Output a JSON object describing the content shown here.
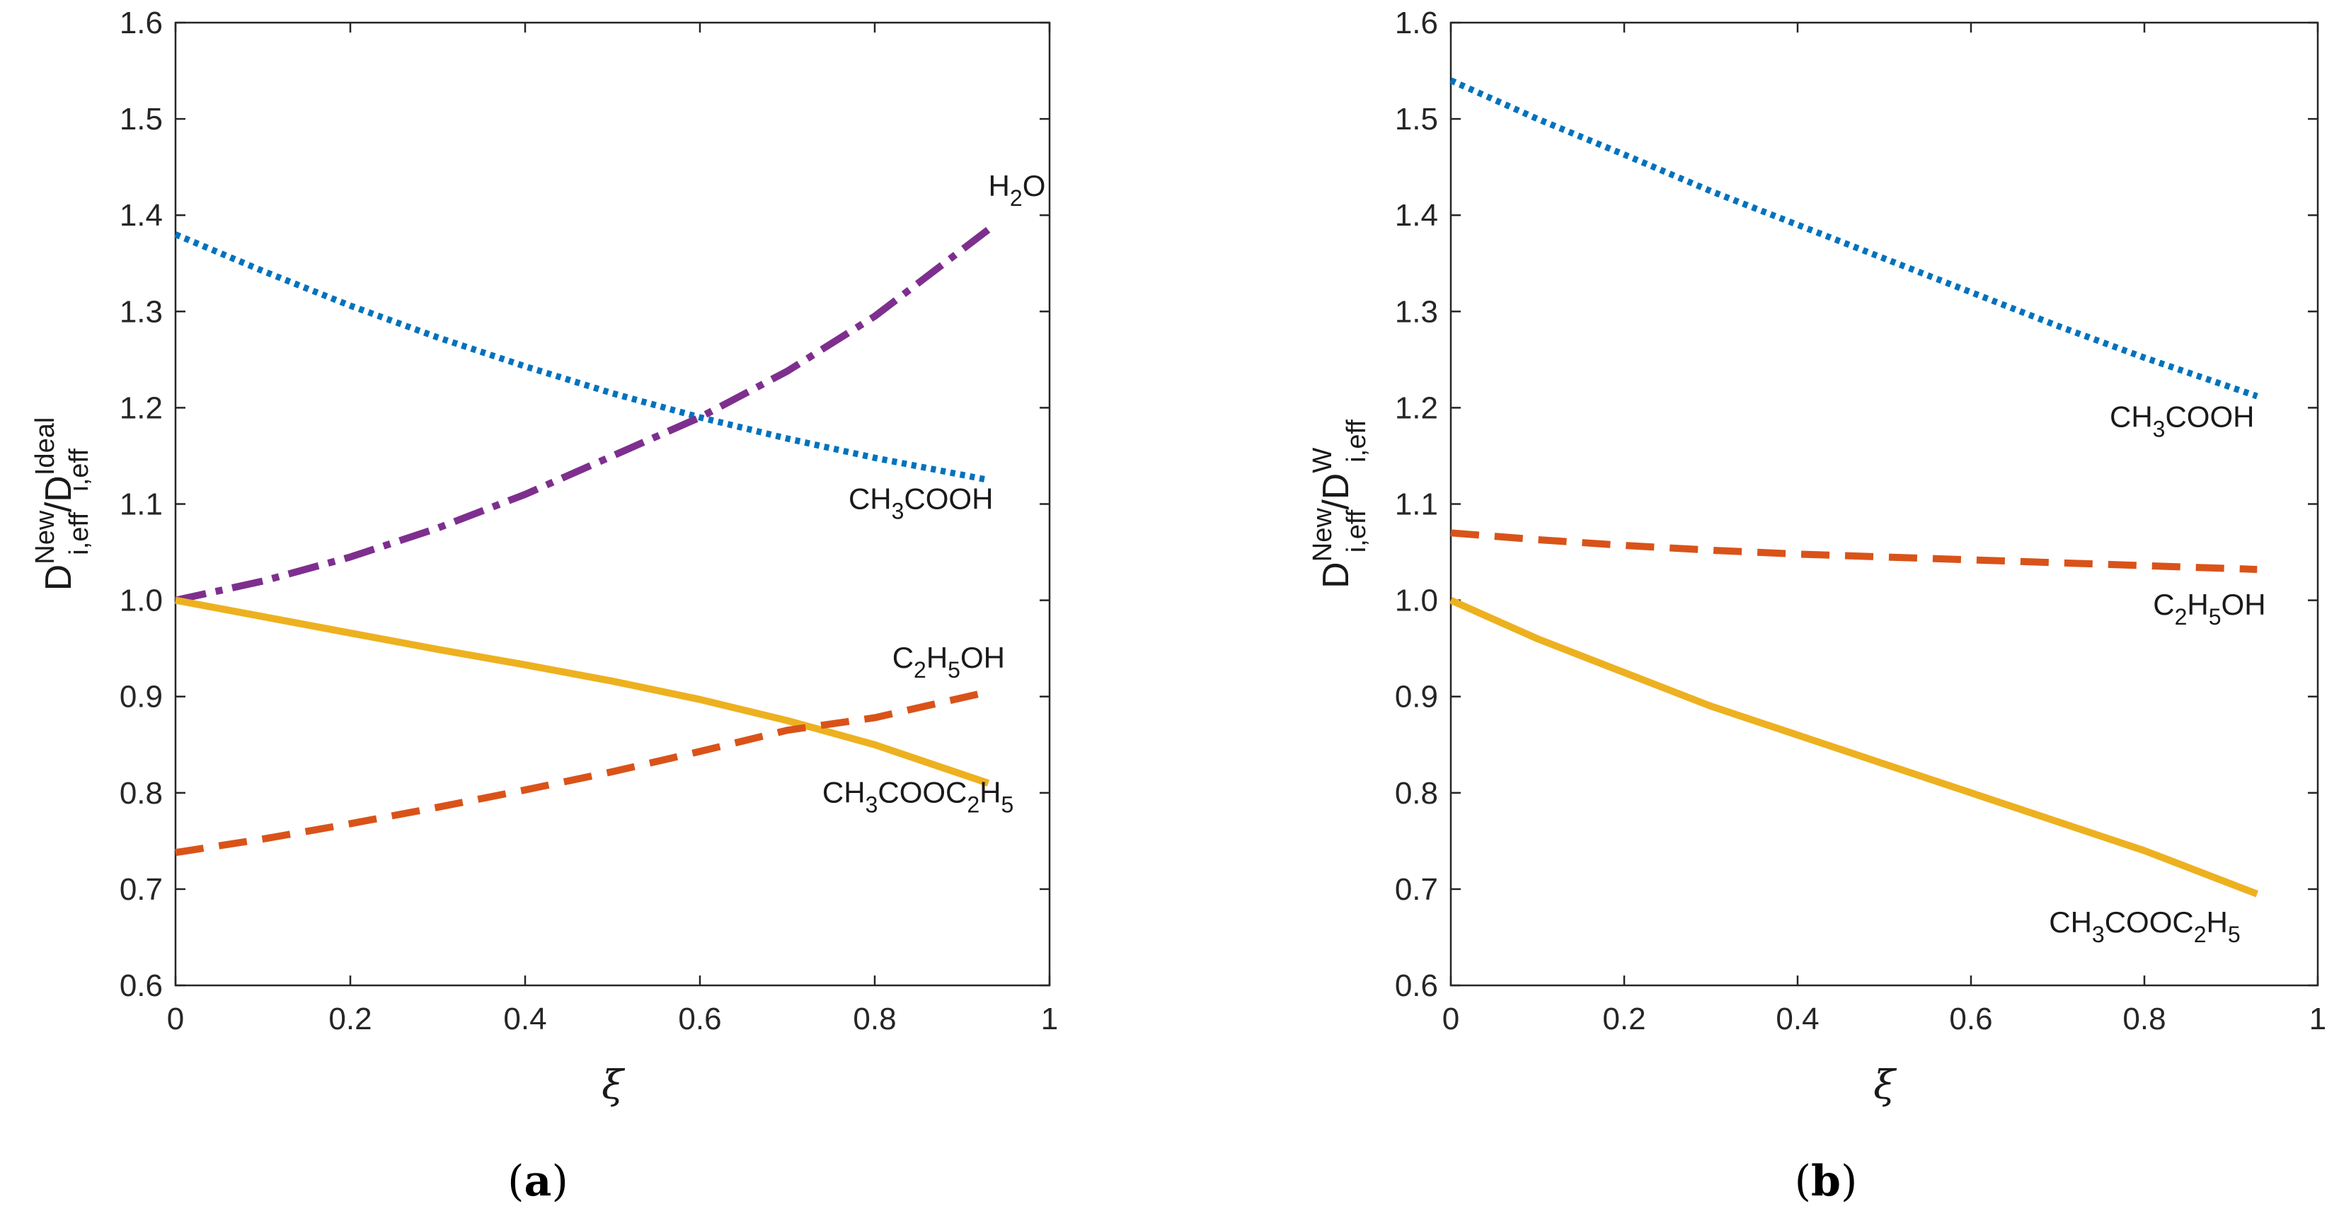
{
  "chart_data": [
    {
      "type": "line",
      "panel": "a",
      "xlabel": "ξ",
      "ylabel": {
        "main1": "D",
        "sup1": "New",
        "sub1": "i,eff",
        "slash": "/",
        "main2": "D",
        "sup2": "Ideal",
        "sub2": "i,eff"
      },
      "xlim": [
        0,
        1
      ],
      "ylim": [
        0.6,
        1.6
      ],
      "xticks": [
        "0",
        "0.2",
        "0.4",
        "0.6",
        "0.8",
        "1"
      ],
      "yticks": [
        "0.6",
        "0.7",
        "0.8",
        "0.9",
        "1.0",
        "1.1",
        "1.2",
        "1.3",
        "1.4",
        "1.5",
        "1.6"
      ],
      "series": [
        {
          "name": "CH3COOH",
          "label_parts": [
            "CH",
            "3",
            "COOH"
          ],
          "label_pos": [
            0.77,
            1.095
          ],
          "color": "#0072bd",
          "style": "dotted",
          "x": [
            0,
            0.1,
            0.2,
            0.3,
            0.4,
            0.5,
            0.6,
            0.7,
            0.8,
            0.93
          ],
          "y": [
            1.38,
            1.342,
            1.306,
            1.273,
            1.243,
            1.215,
            1.19,
            1.168,
            1.148,
            1.125
          ]
        },
        {
          "name": "H2O",
          "label_parts": [
            "H",
            "2",
            "O"
          ],
          "label_pos": [
            0.93,
            1.42
          ],
          "color": "#7e2f8e",
          "style": "dashdot",
          "x": [
            0,
            0.1,
            0.2,
            0.3,
            0.4,
            0.5,
            0.6,
            0.7,
            0.8,
            0.93
          ],
          "y": [
            1.0,
            1.02,
            1.045,
            1.075,
            1.11,
            1.15,
            1.19,
            1.238,
            1.295,
            1.385
          ]
        },
        {
          "name": "CH3COOC2H5",
          "label_parts": [
            "CH",
            "3",
            "COOC",
            "2",
            "H",
            "5"
          ],
          "label_pos": [
            0.74,
            0.79
          ],
          "color": "#edb120",
          "style": "solid",
          "x": [
            0,
            0.1,
            0.2,
            0.3,
            0.4,
            0.5,
            0.6,
            0.7,
            0.8,
            0.93
          ],
          "y": [
            1.0,
            0.983,
            0.966,
            0.949,
            0.933,
            0.916,
            0.897,
            0.875,
            0.85,
            0.81
          ]
        },
        {
          "name": "C2H5OH",
          "label_parts": [
            "C",
            "2",
            "H",
            "5",
            "OH"
          ],
          "label_pos": [
            0.82,
            0.93
          ],
          "color": "#d95319",
          "style": "dashed",
          "x": [
            0,
            0.1,
            0.2,
            0.3,
            0.4,
            0.5,
            0.6,
            0.7,
            0.8,
            0.93
          ],
          "y": [
            0.738,
            0.752,
            0.768,
            0.785,
            0.803,
            0.822,
            0.843,
            0.865,
            0.878,
            0.905
          ]
        }
      ]
    },
    {
      "type": "line",
      "panel": "b",
      "xlabel": "ξ",
      "ylabel": {
        "main1": "D",
        "sup1": "New",
        "sub1": "i,eff",
        "slash": "/",
        "main2": "D",
        "sup2": "W",
        "sub2": "i,eff"
      },
      "xlim": [
        0,
        1
      ],
      "ylim": [
        0.6,
        1.6
      ],
      "xticks": [
        "0",
        "0.2",
        "0.4",
        "0.6",
        "0.8",
        "1"
      ],
      "yticks": [
        "0.6",
        "0.7",
        "0.8",
        "0.9",
        "1.0",
        "1.1",
        "1.2",
        "1.3",
        "1.4",
        "1.5",
        "1.6"
      ],
      "series": [
        {
          "name": "CH3COOH",
          "label_parts": [
            "CH",
            "3",
            "COOH"
          ],
          "label_pos": [
            0.76,
            1.18
          ],
          "color": "#0072bd",
          "style": "dotted",
          "x": [
            0,
            0.1,
            0.2,
            0.3,
            0.4,
            0.5,
            0.6,
            0.7,
            0.8,
            0.93
          ],
          "y": [
            1.54,
            1.5,
            1.463,
            1.425,
            1.39,
            1.355,
            1.32,
            1.285,
            1.252,
            1.212
          ]
        },
        {
          "name": "C2H5OH",
          "label_parts": [
            "C",
            "2",
            "H",
            "5",
            "OH"
          ],
          "label_pos": [
            0.81,
            0.985
          ],
          "color": "#d95319",
          "style": "dashed",
          "x": [
            0,
            0.1,
            0.2,
            0.3,
            0.4,
            0.5,
            0.6,
            0.7,
            0.8,
            0.93
          ],
          "y": [
            1.07,
            1.063,
            1.057,
            1.052,
            1.048,
            1.045,
            1.042,
            1.039,
            1.036,
            1.032
          ]
        },
        {
          "name": "CH3COOC2H5",
          "label_parts": [
            "CH",
            "3",
            "COOC",
            "2",
            "H",
            "5"
          ],
          "label_pos": [
            0.69,
            0.655
          ],
          "color": "#edb120",
          "style": "solid",
          "x": [
            0,
            0.1,
            0.2,
            0.3,
            0.4,
            0.5,
            0.6,
            0.7,
            0.8,
            0.93
          ],
          "y": [
            1.0,
            0.96,
            0.925,
            0.89,
            0.86,
            0.83,
            0.8,
            0.77,
            0.74,
            0.695
          ]
        }
      ]
    }
  ],
  "captions": {
    "a": "a",
    "b": "b"
  }
}
